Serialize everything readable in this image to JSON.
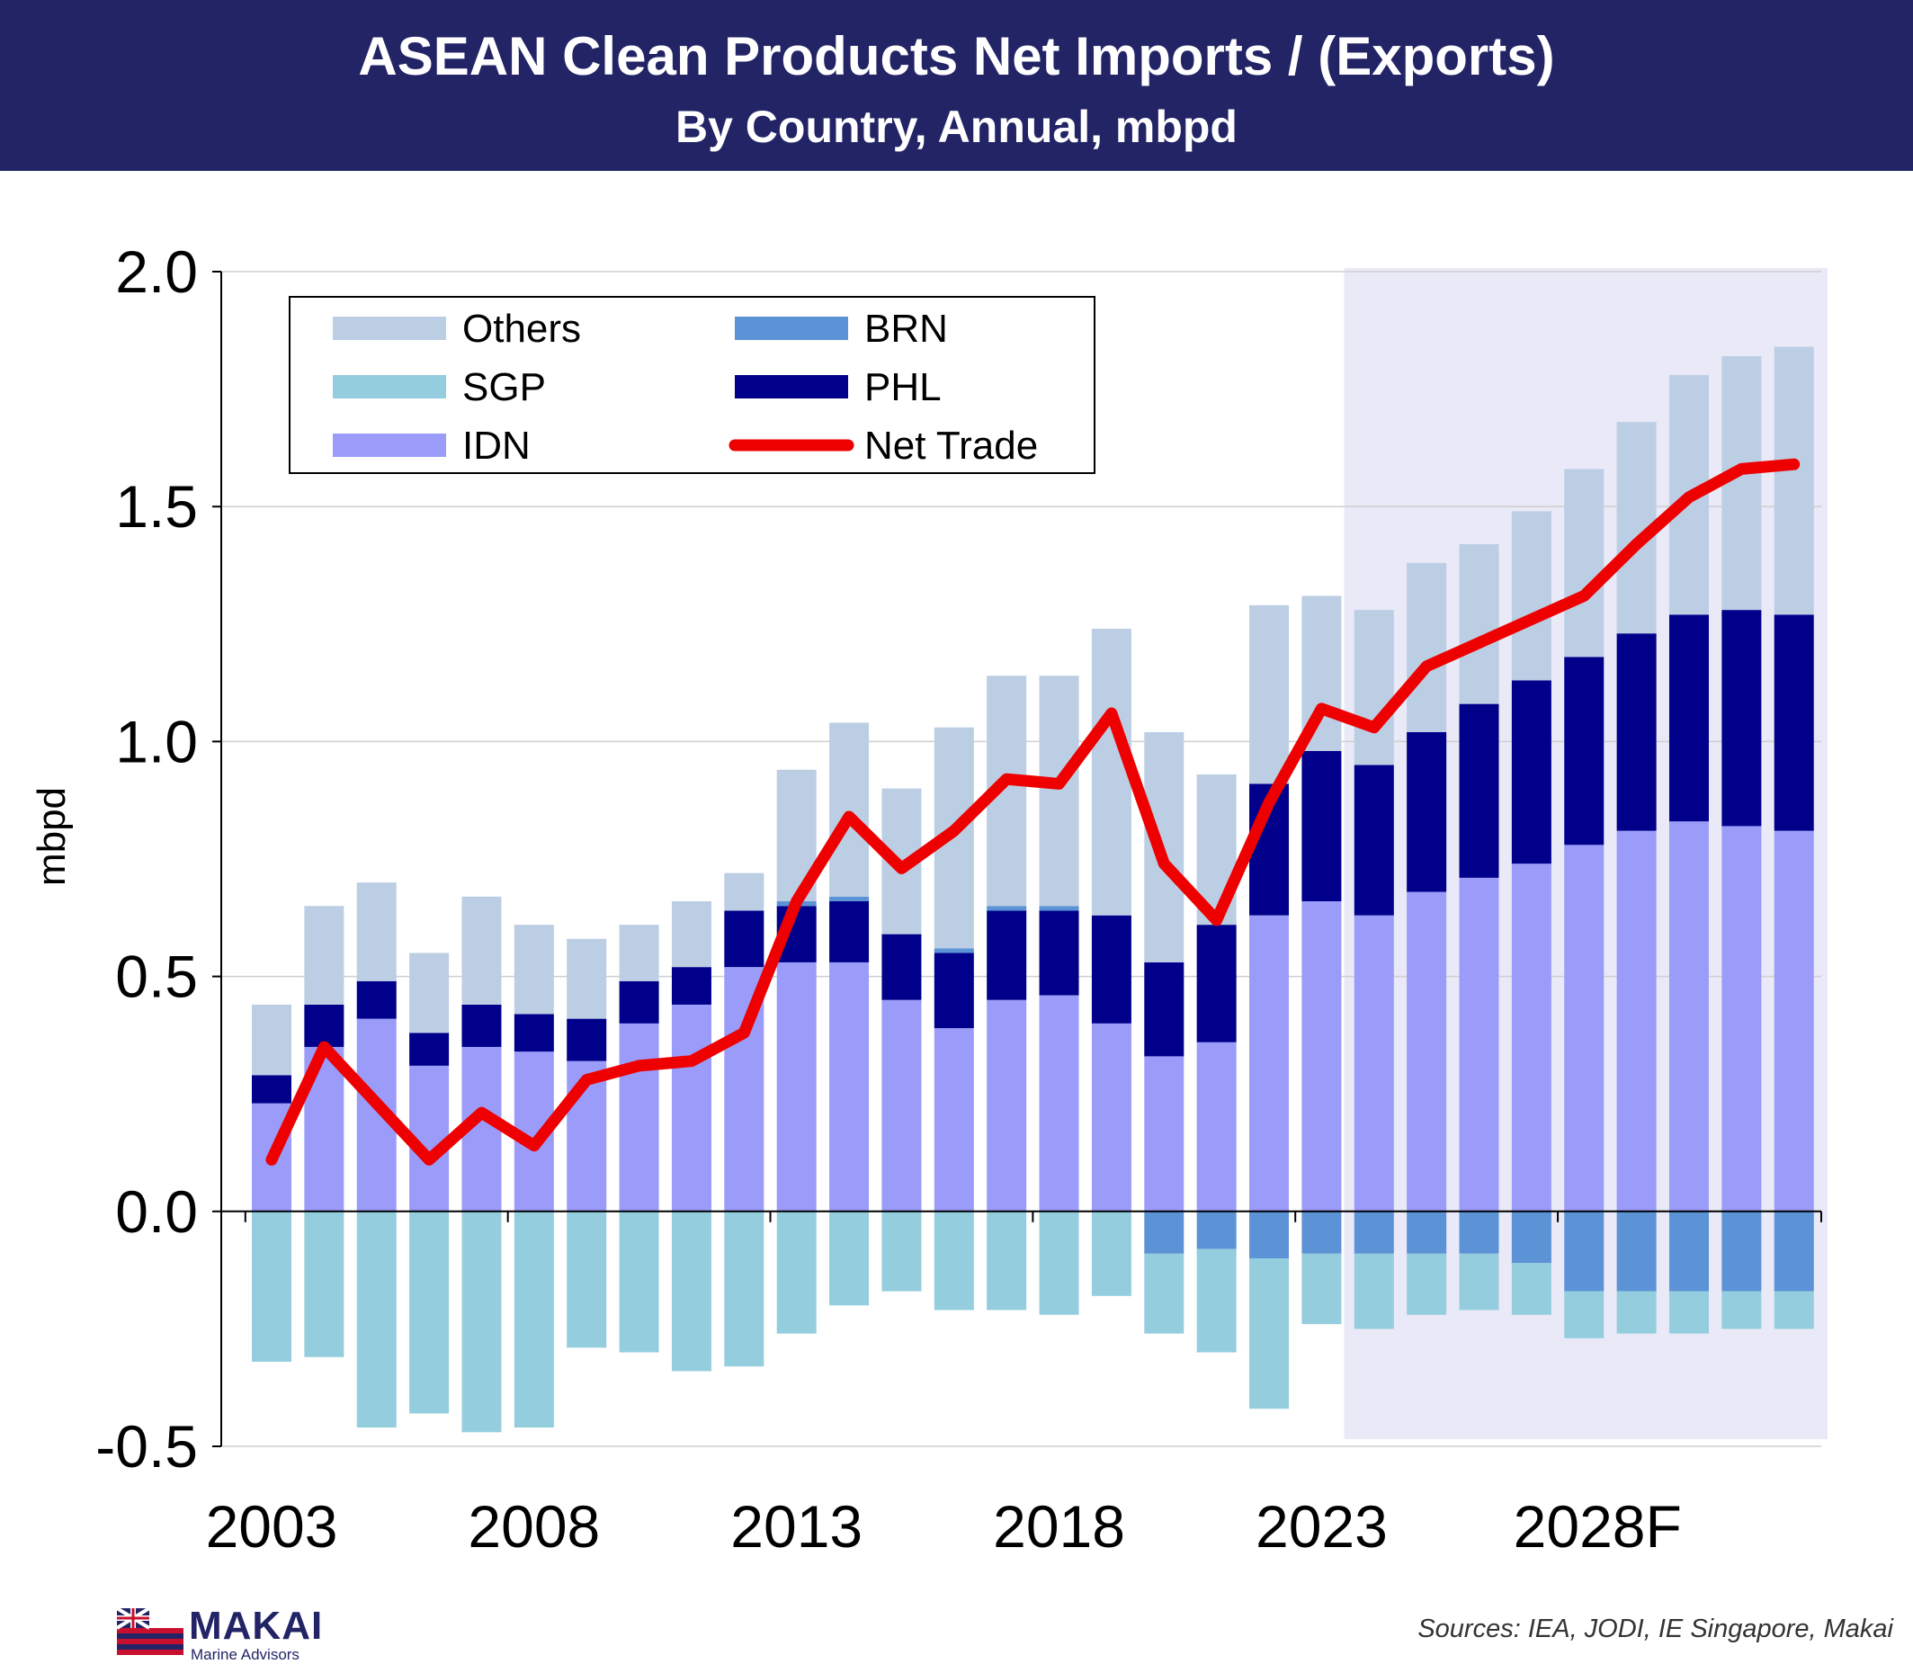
{
  "header": {
    "title": "ASEAN Clean Products Net Imports / (Exports)",
    "subtitle": "By Country, Annual, mbpd"
  },
  "footer": {
    "logo_name": "MAKAI",
    "logo_sub": "Marine Advisors",
    "source": "Sources: IEA, JODI, IE Singapore, Makai"
  },
  "chart_data": {
    "type": "bar",
    "stacked": true,
    "ylabel": "mbpd",
    "ylim": [
      -0.5,
      2.0
    ],
    "yticks": [
      "2.0",
      "1.5",
      "1.0",
      "0.5",
      "0.0",
      "-0.5"
    ],
    "ytick_values": [
      2.0,
      1.5,
      1.0,
      0.5,
      0.0,
      -0.5
    ],
    "xtick_labels": [
      "2003",
      "2008",
      "2013",
      "2018",
      "2023",
      "2028F"
    ],
    "xtick_years": [
      2003,
      2008,
      2013,
      2018,
      2023,
      2028
    ],
    "forecast_shading_from_year": 2024,
    "legend_position": "top-left",
    "years": [
      2003,
      2004,
      2005,
      2006,
      2007,
      2008,
      2009,
      2010,
      2011,
      2012,
      2013,
      2014,
      2015,
      2016,
      2017,
      2018,
      2019,
      2020,
      2021,
      2022,
      2023,
      2024,
      2025,
      2026,
      2027,
      2028,
      2029,
      2030,
      2031,
      2032
    ],
    "series": [
      {
        "name": "IDN",
        "color": "#9b9bf9",
        "values": [
          0.23,
          0.35,
          0.41,
          0.31,
          0.35,
          0.34,
          0.32,
          0.4,
          0.44,
          0.52,
          0.53,
          0.53,
          0.45,
          0.39,
          0.45,
          0.46,
          0.4,
          0.33,
          0.36,
          0.63,
          0.66,
          0.63,
          0.68,
          0.71,
          0.74,
          0.78,
          0.81,
          0.83,
          0.82,
          0.81
        ]
      },
      {
        "name": "PHL",
        "color": "#00008b",
        "values": [
          0.06,
          0.09,
          0.08,
          0.07,
          0.09,
          0.08,
          0.09,
          0.09,
          0.08,
          0.12,
          0.12,
          0.13,
          0.14,
          0.16,
          0.19,
          0.18,
          0.23,
          0.2,
          0.25,
          0.28,
          0.32,
          0.32,
          0.34,
          0.37,
          0.39,
          0.4,
          0.42,
          0.44,
          0.46,
          0.46
        ]
      },
      {
        "name": "BRN",
        "color": "#5b93d6",
        "values": [
          0,
          0,
          0,
          0,
          0,
          0,
          0,
          0,
          0,
          0,
          0.01,
          0.01,
          0,
          0.01,
          0.01,
          0.01,
          0,
          -0.09,
          -0.08,
          -0.1,
          -0.09,
          -0.09,
          -0.09,
          -0.09,
          -0.11,
          -0.17,
          -0.17,
          -0.17,
          -0.17,
          -0.17
        ]
      },
      {
        "name": "SGP",
        "color": "#94cede",
        "values": [
          -0.32,
          -0.31,
          -0.46,
          -0.43,
          -0.47,
          -0.46,
          -0.29,
          -0.3,
          -0.34,
          -0.33,
          -0.26,
          -0.2,
          -0.17,
          -0.21,
          -0.21,
          -0.22,
          -0.18,
          -0.17,
          -0.22,
          -0.32,
          -0.15,
          -0.16,
          -0.13,
          -0.12,
          -0.11,
          -0.1,
          -0.09,
          -0.09,
          -0.08,
          -0.08
        ]
      },
      {
        "name": "Others",
        "color": "#bccee4",
        "values": [
          0.15,
          0.21,
          0.21,
          0.17,
          0.23,
          0.19,
          0.17,
          0.12,
          0.14,
          0.08,
          0.28,
          0.37,
          0.31,
          0.47,
          0.49,
          0.49,
          0.61,
          0.49,
          0.32,
          0.38,
          0.33,
          0.33,
          0.36,
          0.34,
          0.36,
          0.4,
          0.45,
          0.51,
          0.54,
          0.57
        ]
      },
      {
        "name": "Net Trade",
        "type": "line",
        "color": "#ee0000",
        "values": [
          0.11,
          0.35,
          0.23,
          0.11,
          0.21,
          0.14,
          0.28,
          0.31,
          0.32,
          0.38,
          0.66,
          0.84,
          0.73,
          0.81,
          0.92,
          0.91,
          1.06,
          0.74,
          0.62,
          0.87,
          1.07,
          1.03,
          1.16,
          1.21,
          1.26,
          1.31,
          1.42,
          1.52,
          1.58,
          1.59
        ]
      }
    ]
  }
}
